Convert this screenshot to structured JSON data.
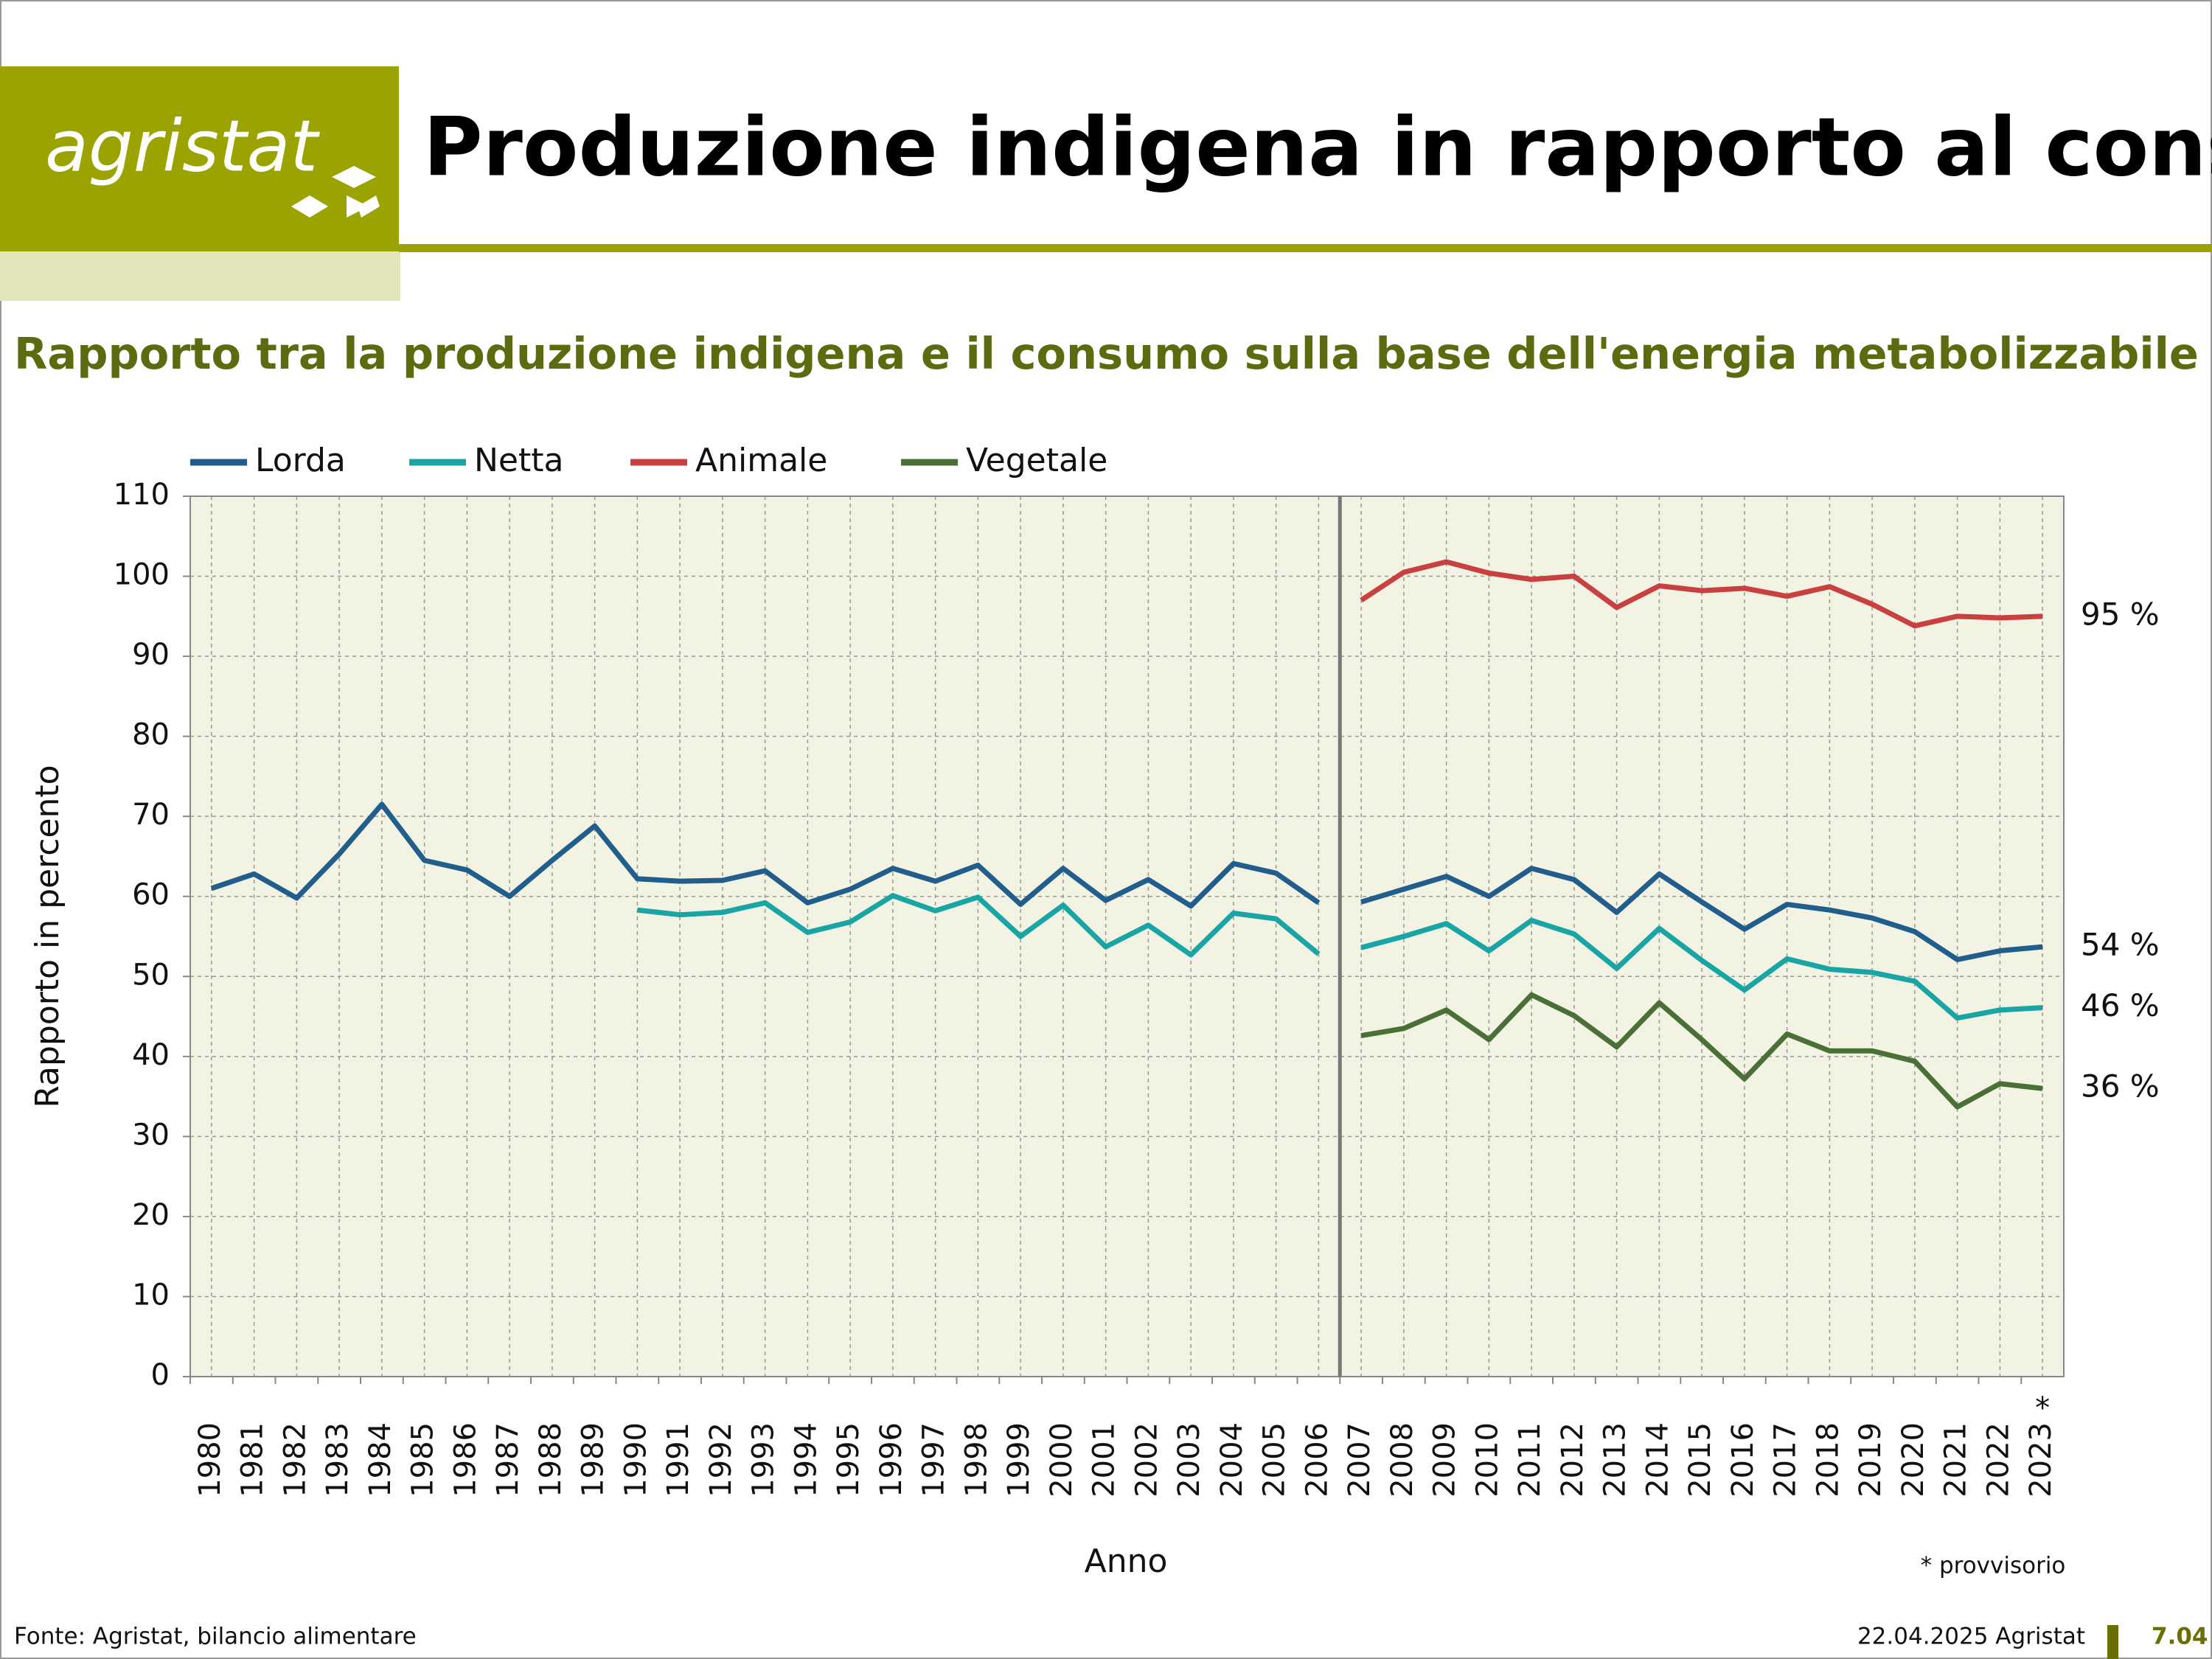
{
  "header": {
    "logo": "agristat",
    "title": "Produzione indigena in rapporto al consumo"
  },
  "footer": {
    "source": "Fonte: Agristat, bilancio alimentare",
    "date": "22.04.2025 Agristat",
    "page": "7.04"
  },
  "chart_data": {
    "type": "line",
    "title": "Rapporto tra la produzione indigena e il consumo sulla base dell'energia metabolizzabile",
    "x_label": "Anno",
    "y_label": "Rapporto in percento",
    "note": "* provvisorio",
    "x_annotation": {
      "category": "2023",
      "text": "*"
    },
    "separator_after": "2006",
    "categories": [
      "1980",
      "1981",
      "1982",
      "1983",
      "1984",
      "1985",
      "1986",
      "1987",
      "1988",
      "1989",
      "1990",
      "1991",
      "1992",
      "1993",
      "1994",
      "1995",
      "1996",
      "1997",
      "1998",
      "1999",
      "2000",
      "2001",
      "2002",
      "2003",
      "2004",
      "2005",
      "2006",
      "2007",
      "2008",
      "2009",
      "2010",
      "2011",
      "2012",
      "2013",
      "2014",
      "2015",
      "2016",
      "2017",
      "2018",
      "2019",
      "2020",
      "2021",
      "2022",
      "2023"
    ],
    "series": [
      {
        "name": "Lorda",
        "color": "#215e8c",
        "end_label": "54 %",
        "values": [
          61,
          62.8,
          59.8,
          65.3,
          71.5,
          64.5,
          63.3,
          60,
          64.5,
          68.8,
          62.2,
          61.9,
          62,
          63.2,
          59.2,
          60.9,
          63.5,
          61.9,
          63.9,
          59,
          63.5,
          59.5,
          62.1,
          58.8,
          64.1,
          62.9,
          59.2,
          59.3,
          60.9,
          62.5,
          60,
          63.5,
          62.1,
          58,
          62.8,
          59.3,
          55.9,
          59,
          58.3,
          57.3,
          55.6,
          52.1,
          53.2,
          53.7
        ]
      },
      {
        "name": "Netta",
        "color": "#1aa5a5",
        "end_label": "46 %",
        "values": [
          null,
          null,
          null,
          null,
          null,
          null,
          null,
          null,
          null,
          null,
          58.3,
          57.7,
          58,
          59.2,
          55.5,
          56.8,
          60.1,
          58.2,
          59.9,
          55,
          58.9,
          53.7,
          56.4,
          52.7,
          57.9,
          57.2,
          52.8,
          53.6,
          55,
          56.6,
          53.2,
          57,
          55.3,
          51,
          56,
          52,
          48.3,
          52.2,
          50.9,
          50.5,
          49.4,
          44.8,
          45.8,
          46.1
        ]
      },
      {
        "name": "Animale",
        "color": "#c8403f",
        "end_label": "95 %",
        "values": [
          null,
          null,
          null,
          null,
          null,
          null,
          null,
          null,
          null,
          null,
          null,
          null,
          null,
          null,
          null,
          null,
          null,
          null,
          null,
          null,
          null,
          null,
          null,
          null,
          null,
          null,
          null,
          97,
          100.5,
          101.8,
          100.4,
          99.6,
          100,
          96.1,
          98.8,
          98.2,
          98.5,
          97.5,
          98.7,
          96.5,
          93.8,
          95,
          94.8,
          95
        ]
      },
      {
        "name": "Vegetale",
        "color": "#4a7038",
        "end_label": "36 %",
        "values": [
          null,
          null,
          null,
          null,
          null,
          null,
          null,
          null,
          null,
          null,
          null,
          null,
          null,
          null,
          null,
          null,
          null,
          null,
          null,
          null,
          null,
          null,
          null,
          null,
          null,
          null,
          null,
          42.6,
          43.5,
          45.8,
          42.1,
          47.7,
          45.1,
          41.2,
          46.7,
          42.1,
          37.2,
          42.8,
          40.7,
          40.7,
          39.4,
          33.7,
          36.6,
          36
        ]
      }
    ],
    "ylim": [
      0,
      110
    ],
    "yticks": [
      0,
      10,
      20,
      30,
      40,
      50,
      60,
      70,
      80,
      90,
      100,
      110
    ],
    "grid": true,
    "legend": "top"
  }
}
